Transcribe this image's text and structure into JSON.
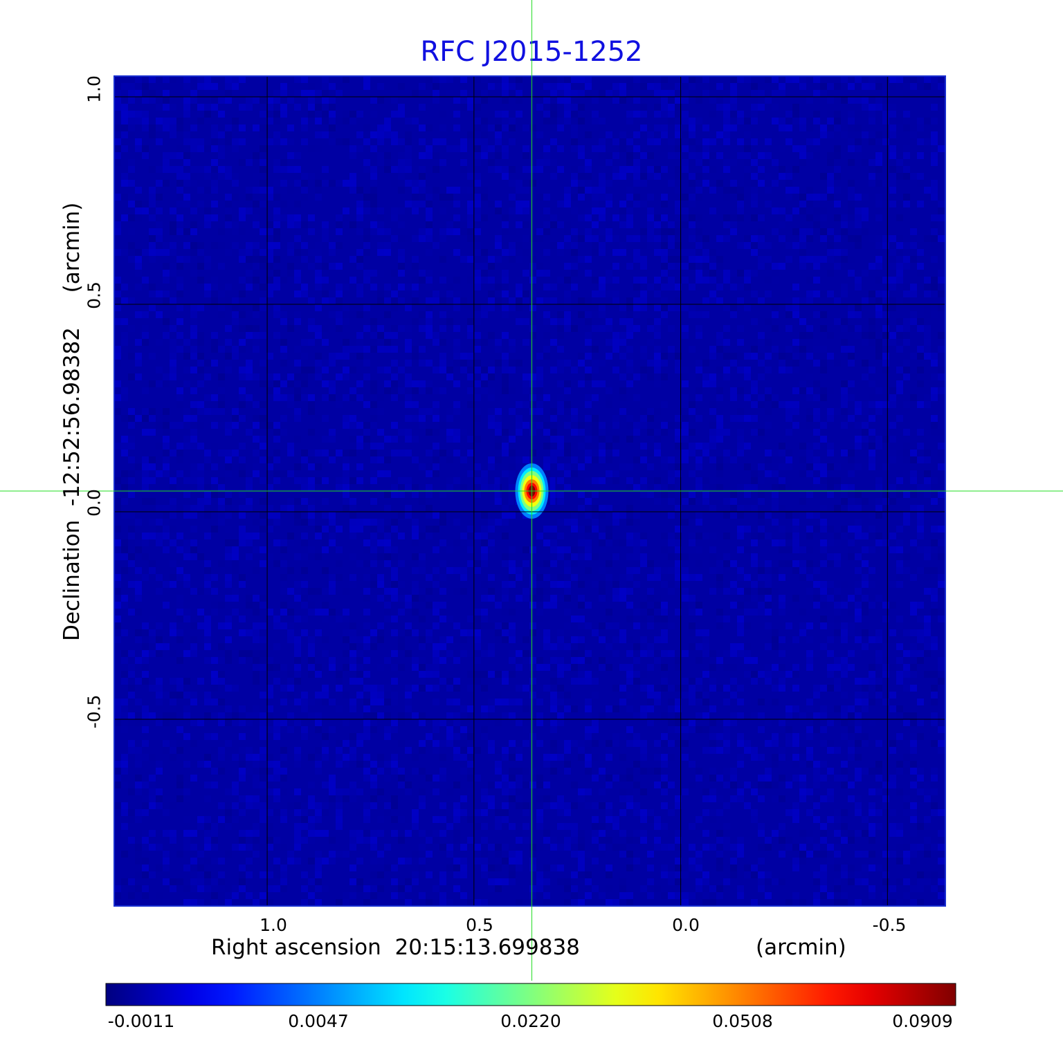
{
  "chart_data": {
    "type": "heatmap",
    "title": "RFC J2015-1252",
    "xlabel": "Right ascension  20:15:13.699838",
    "xlabel_unit": "(arcmin)",
    "ylabel": "Declination  -12:52:56.98382",
    "ylabel_unit": "(arcmin)",
    "x_ticks": [
      "1.0",
      "0.5",
      "0.0",
      "-0.5"
    ],
    "x_tick_values": [
      1.0,
      0.5,
      0.0,
      -0.5
    ],
    "y_ticks": [
      "1.0",
      "0.5",
      "0.0",
      "-0.5"
    ],
    "y_tick_values": [
      1.0,
      0.5,
      0.0,
      -0.5
    ],
    "xlim": [
      1.37,
      -0.64
    ],
    "ylim": [
      -0.95,
      1.05
    ],
    "grid": true,
    "colormap": "jet",
    "colorbar_ticks": [
      "-0.0011",
      "0.0047",
      "0.0220",
      "0.0508",
      "0.0909"
    ],
    "colorbar_values": [
      -0.0011,
      0.0047,
      0.022,
      0.0508,
      0.0909
    ],
    "source_peak": {
      "x": 0.36,
      "y": 0.05,
      "value": 0.0909
    },
    "crosshair": {
      "x": 0.36,
      "y": 0.05
    },
    "background_level": -0.0003,
    "colors": {
      "title": "#1010e0",
      "crosshair": "#22dd22",
      "grid": "#000000",
      "background": "#1040f0"
    }
  }
}
